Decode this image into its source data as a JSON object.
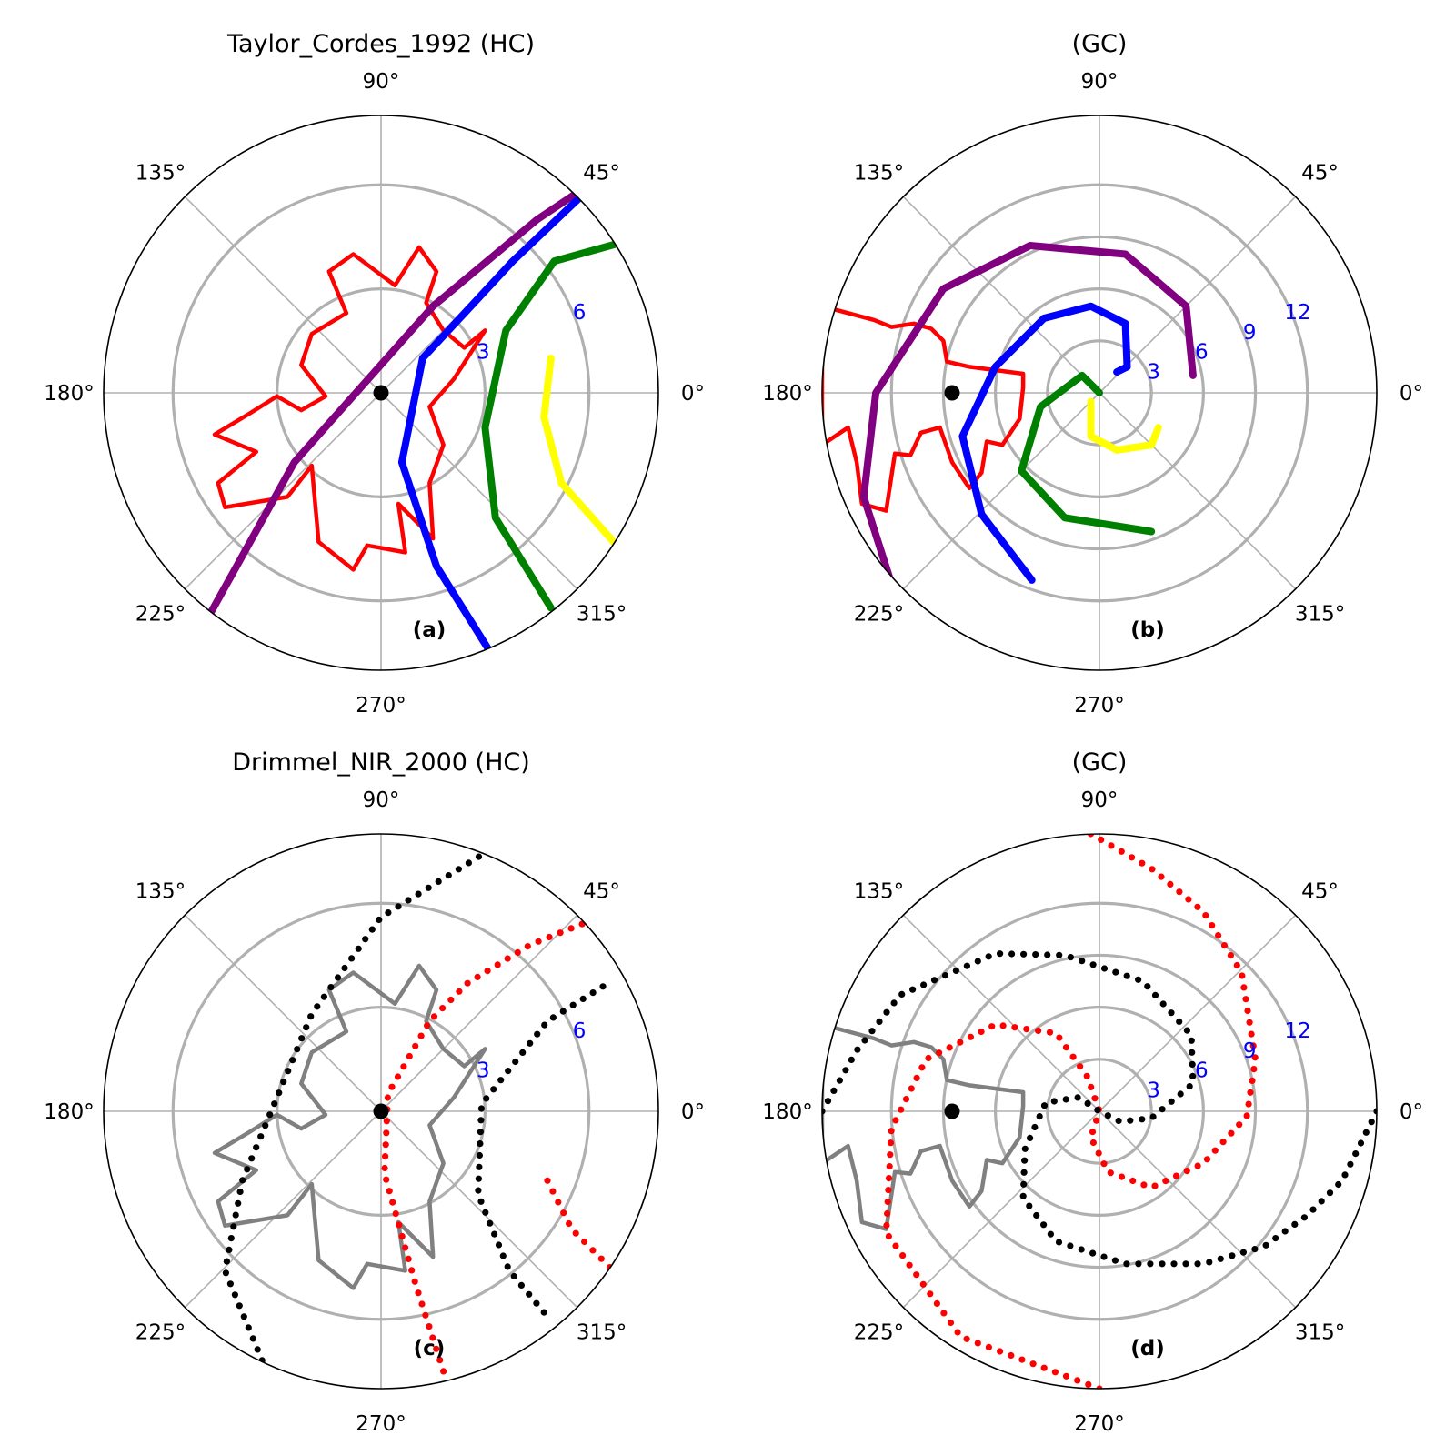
{
  "chart_data": [
    {
      "id": "a",
      "type": "polar-scatter",
      "title": "Taylor_Cordes_1992 (HC)",
      "panel_label": "(a)",
      "frame": "HC",
      "rmax": 8,
      "radial_ticks": [
        3,
        6
      ],
      "angle_ticks": [
        "0°",
        "45°",
        "90°",
        "135°",
        "180°",
        "225°",
        "270°",
        "315°"
      ],
      "sun": [
        0,
        0
      ],
      "arms": [
        {
          "color": "#800080",
          "marker": "line",
          "points": [
            [
              -6.2,
              -9.2
            ],
            [
              -5.0,
              -6.5
            ],
            [
              -2.5,
              -2.0
            ],
            [
              1.5,
              2.5
            ],
            [
              4.5,
              5.0
            ],
            [
              7.5,
              7.0
            ]
          ]
        },
        {
          "color": "#0000ff",
          "marker": "line",
          "points": [
            [
              3.1,
              -7.4
            ],
            [
              1.6,
              -5.0
            ],
            [
              0.6,
              -2.0
            ],
            [
              1.2,
              1.0
            ],
            [
              3.8,
              3.8
            ],
            [
              5.7,
              5.6
            ]
          ]
        },
        {
          "color": "#008000",
          "marker": "line",
          "points": [
            [
              4.9,
              -6.2
            ],
            [
              3.3,
              -3.6
            ],
            [
              3.0,
              -1.0
            ],
            [
              3.6,
              1.8
            ],
            [
              5.0,
              3.8
            ],
            [
              6.8,
              4.3
            ]
          ]
        },
        {
          "color": "#ffff00",
          "marker": "line",
          "points": [
            [
              6.8,
              -4.4
            ],
            [
              5.2,
              -2.6
            ],
            [
              4.7,
              -0.7
            ],
            [
              4.9,
              1.0
            ]
          ]
        }
      ],
      "contours": [
        {
          "color": "#ff0000",
          "points": [
            [
              -3.0,
              -0.1
            ],
            [
              -2.3,
              -0.5
            ],
            [
              -1.6,
              -0.1
            ],
            [
              -2.3,
              0.8
            ],
            [
              -2.0,
              1.7
            ],
            [
              -1.0,
              2.3
            ],
            [
              -1.5,
              3.5
            ],
            [
              -0.8,
              4.0
            ],
            [
              0.4,
              3.1
            ],
            [
              1.1,
              4.2
            ],
            [
              1.6,
              3.5
            ],
            [
              1.3,
              2.6
            ],
            [
              1.8,
              1.8
            ],
            [
              2.4,
              1.3
            ],
            [
              3.0,
              1.8
            ],
            [
              2.1,
              0.4
            ],
            [
              1.4,
              -0.4
            ],
            [
              1.8,
              -1.5
            ],
            [
              1.4,
              -2.6
            ],
            [
              1.5,
              -4.2
            ],
            [
              0.5,
              -3.2
            ],
            [
              0.7,
              -4.6
            ],
            [
              -0.4,
              -4.4
            ],
            [
              -0.8,
              -5.1
            ],
            [
              -1.8,
              -4.3
            ],
            [
              -2.0,
              -2.1
            ],
            [
              -2.7,
              -3.0
            ],
            [
              -4.5,
              -3.3
            ],
            [
              -4.7,
              -2.6
            ],
            [
              -3.6,
              -1.7
            ],
            [
              -4.8,
              -1.2
            ],
            [
              -3.8,
              -0.6
            ],
            [
              -3.0,
              -0.1
            ]
          ]
        }
      ]
    },
    {
      "id": "b",
      "type": "polar-scatter",
      "title": "(GC)",
      "panel_label": "(b)",
      "frame": "GC",
      "rmax": 16,
      "radial_ticks": [
        3,
        6,
        9,
        12
      ],
      "angle_ticks": [
        "0°",
        "45°",
        "90°",
        "135°",
        "180°",
        "225°",
        "270°",
        "315°"
      ],
      "sun": [
        -8.5,
        0
      ],
      "arms": [
        {
          "color": "#800080",
          "marker": "line",
          "points": [
            [
              -12.0,
              -11.0
            ],
            [
              -13.6,
              -6.0
            ],
            [
              -12.9,
              0.0
            ],
            [
              -9.0,
              6.0
            ],
            [
              -4.0,
              8.5
            ],
            [
              1.5,
              8.0
            ],
            [
              5.0,
              5.0
            ],
            [
              5.4,
              1.0
            ]
          ]
        },
        {
          "color": "#0000ff",
          "marker": "line",
          "points": [
            [
              -3.9,
              -10.8
            ],
            [
              -6.8,
              -7.0
            ],
            [
              -7.9,
              -2.5
            ],
            [
              -6.0,
              1.5
            ],
            [
              -3.2,
              4.3
            ],
            [
              -0.5,
              5.0
            ],
            [
              1.5,
              4.0
            ],
            [
              1.6,
              1.5
            ],
            [
              1.0,
              1.2
            ]
          ]
        },
        {
          "color": "#008000",
          "marker": "line",
          "points": [
            [
              3.0,
              -8.0
            ],
            [
              -2.0,
              -7.2
            ],
            [
              -4.5,
              -4.5
            ],
            [
              -3.4,
              -0.8
            ],
            [
              -1.0,
              1.0
            ],
            [
              0.0,
              0.0
            ]
          ]
        },
        {
          "color": "#ffff00",
          "marker": "line",
          "points": [
            [
              3.4,
              -2.0
            ],
            [
              3.0,
              -3.0
            ],
            [
              1.0,
              -3.3
            ],
            [
              -0.5,
              -2.5
            ],
            [
              -0.5,
              -0.5
            ]
          ]
        }
      ],
      "contours": [
        {
          "color": "#ff0000",
          "points": [
            [
              -4.4,
              0.3
            ],
            [
              -4.4,
              1.1
            ],
            [
              -7.5,
              1.5
            ],
            [
              -8.8,
              1.8
            ],
            [
              -9.0,
              3.0
            ],
            [
              -9.7,
              3.7
            ],
            [
              -10.7,
              4.0
            ],
            [
              -12.0,
              3.8
            ],
            [
              -13.0,
              4.2
            ],
            [
              -16.0,
              5.0
            ],
            [
              -16.0,
              -3.0
            ],
            [
              -14.5,
              -2.0
            ],
            [
              -14.0,
              -4.0
            ],
            [
              -13.7,
              -6.4
            ],
            [
              -12.3,
              -6.8
            ],
            [
              -11.8,
              -3.5
            ],
            [
              -10.9,
              -3.6
            ],
            [
              -10.3,
              -2.3
            ],
            [
              -9.2,
              -2.0
            ],
            [
              -8.5,
              -4.0
            ],
            [
              -7.5,
              -5.5
            ],
            [
              -6.8,
              -4.6
            ],
            [
              -6.5,
              -2.8
            ],
            [
              -5.6,
              -3.0
            ],
            [
              -4.6,
              -1.5
            ],
            [
              -4.4,
              0.3
            ]
          ]
        }
      ]
    },
    {
      "id": "c",
      "type": "polar-scatter",
      "title": "Drimmel_NIR_2000 (HC)",
      "panel_label": "(c)",
      "frame": "HC",
      "rmax": 8,
      "radial_ticks": [
        3,
        6
      ],
      "angle_ticks": [
        "0°",
        "45°",
        "90°",
        "135°",
        "180°",
        "225°",
        "270°",
        "315°"
      ],
      "sun": [
        0,
        0
      ],
      "arms": [
        {
          "color": "#000000",
          "marker": "dot",
          "points": [
            [
              -3.3,
              -7.5
            ],
            [
              -4.5,
              -4.6
            ],
            [
              -4.0,
              -2.0
            ],
            [
              -2.0,
              2.8
            ],
            [
              0.0,
              5.6
            ],
            [
              3.4,
              7.7
            ]
          ]
        },
        {
          "color": "#ff0000",
          "marker": "dot",
          "points": [
            [
              1.8,
              -7.5
            ],
            [
              1.0,
              -5.0
            ],
            [
              0.1,
              -1.8
            ],
            [
              0.2,
              0.5
            ],
            [
              1.4,
              2.6
            ],
            [
              2.5,
              3.7
            ],
            [
              4.3,
              4.8
            ],
            [
              5.8,
              5.4
            ]
          ]
        },
        {
          "color": "#000000",
          "marker": "dot",
          "points": [
            [
              4.7,
              -5.8
            ],
            [
              3.7,
              -4.6
            ],
            [
              2.8,
              -2.4
            ],
            [
              2.9,
              0.2
            ],
            [
              4.8,
              2.6
            ],
            [
              6.4,
              3.6
            ]
          ]
        },
        {
          "color": "#ff0000",
          "marker": "dot",
          "points": [
            [
              6.6,
              -4.5
            ],
            [
              5.5,
              -3.4
            ],
            [
              4.8,
              -2.0
            ]
          ]
        }
      ],
      "contours": [
        {
          "color": "#808080",
          "points": [
            [
              -3.0,
              -0.1
            ],
            [
              -2.3,
              -0.5
            ],
            [
              -1.6,
              -0.1
            ],
            [
              -2.3,
              0.8
            ],
            [
              -2.0,
              1.7
            ],
            [
              -1.0,
              2.3
            ],
            [
              -1.5,
              3.5
            ],
            [
              -0.8,
              4.0
            ],
            [
              0.4,
              3.1
            ],
            [
              1.1,
              4.2
            ],
            [
              1.6,
              3.5
            ],
            [
              1.3,
              2.6
            ],
            [
              1.8,
              1.8
            ],
            [
              2.4,
              1.3
            ],
            [
              3.0,
              1.8
            ],
            [
              2.1,
              0.4
            ],
            [
              1.4,
              -0.4
            ],
            [
              1.8,
              -1.5
            ],
            [
              1.4,
              -2.6
            ],
            [
              1.5,
              -4.2
            ],
            [
              0.5,
              -3.2
            ],
            [
              0.7,
              -4.6
            ],
            [
              -0.4,
              -4.4
            ],
            [
              -0.8,
              -5.1
            ],
            [
              -1.8,
              -4.3
            ],
            [
              -2.0,
              -2.1
            ],
            [
              -2.7,
              -3.0
            ],
            [
              -4.5,
              -3.3
            ],
            [
              -4.7,
              -2.6
            ],
            [
              -3.6,
              -1.7
            ],
            [
              -4.8,
              -1.2
            ],
            [
              -3.8,
              -0.6
            ],
            [
              -3.0,
              -0.1
            ]
          ]
        }
      ]
    },
    {
      "id": "d",
      "type": "polar-scatter",
      "title": "(GC)",
      "panel_label": "(d)",
      "frame": "GC",
      "rmax": 16,
      "radial_ticks": [
        3,
        6,
        9,
        12
      ],
      "angle_ticks": [
        "0°",
        "45°",
        "90°",
        "135°",
        "180°",
        "225°",
        "270°",
        "315°"
      ],
      "sun": [
        -8.5,
        0
      ],
      "arms": [
        {
          "color": "#ff0000",
          "marker": "dot",
          "points": [
            [
              0.0,
              -16.0
            ],
            [
              -8.0,
              -13.0
            ],
            [
              -12.3,
              -7.0
            ],
            [
              -12.0,
              -1.0
            ],
            [
              -10.0,
              3.0
            ],
            [
              -6.0,
              5.0
            ],
            [
              -2.5,
              4.5
            ],
            [
              -0.7,
              2.0
            ],
            [
              0.0,
              0.0
            ],
            [
              -0.5,
              -1.5
            ],
            [
              0.5,
              -3.5
            ],
            [
              3.0,
              -4.4
            ],
            [
              6.0,
              -3.0
            ],
            [
              8.5,
              -0.3
            ],
            [
              9.0,
              3.0
            ],
            [
              8.2,
              8.0
            ],
            [
              6.0,
              11.5
            ],
            [
              3.0,
              14.0
            ],
            [
              -0.5,
              16.0
            ]
          ]
        },
        {
          "color": "#000000",
          "marker": "dot",
          "points": [
            [
              -16.0,
              0.0
            ],
            [
              -14.0,
              3.5
            ],
            [
              -11.5,
              6.7
            ],
            [
              -6.0,
              9.1
            ],
            [
              -2.0,
              9.0
            ],
            [
              2.5,
              7.5
            ],
            [
              5.3,
              4.4
            ],
            [
              5.4,
              1.6
            ],
            [
              3.0,
              -0.4
            ],
            [
              1.2,
              -0.6
            ],
            [
              0.0,
              0.0
            ],
            [
              -1.2,
              0.8
            ],
            [
              -3.1,
              0.5
            ],
            [
              -4.3,
              -2.2
            ],
            [
              -4.4,
              -5.0
            ],
            [
              -2.5,
              -7.5
            ],
            [
              1.5,
              -8.8
            ],
            [
              6.0,
              -8.8
            ],
            [
              9.5,
              -7.8
            ],
            [
              12.0,
              -6.0
            ],
            [
              14.0,
              -4.0
            ],
            [
              16.0,
              0.0
            ]
          ]
        }
      ],
      "contours": [
        {
          "color": "#808080",
          "points": [
            [
              -4.4,
              0.3
            ],
            [
              -4.4,
              1.1
            ],
            [
              -7.5,
              1.5
            ],
            [
              -8.8,
              1.8
            ],
            [
              -9.0,
              3.0
            ],
            [
              -9.7,
              3.7
            ],
            [
              -10.7,
              4.0
            ],
            [
              -12.0,
              3.8
            ],
            [
              -13.0,
              4.2
            ],
            [
              -16.0,
              5.0
            ],
            [
              -16.0,
              -3.0
            ],
            [
              -14.5,
              -2.0
            ],
            [
              -14.0,
              -4.0
            ],
            [
              -13.7,
              -6.4
            ],
            [
              -12.3,
              -6.8
            ],
            [
              -11.8,
              -3.5
            ],
            [
              -10.9,
              -3.6
            ],
            [
              -10.3,
              -2.3
            ],
            [
              -9.2,
              -2.0
            ],
            [
              -8.5,
              -4.0
            ],
            [
              -7.5,
              -5.5
            ],
            [
              -6.8,
              -4.6
            ],
            [
              -6.5,
              -2.8
            ],
            [
              -5.6,
              -3.0
            ],
            [
              -4.6,
              -1.5
            ],
            [
              -4.4,
              0.3
            ]
          ]
        }
      ]
    }
  ]
}
